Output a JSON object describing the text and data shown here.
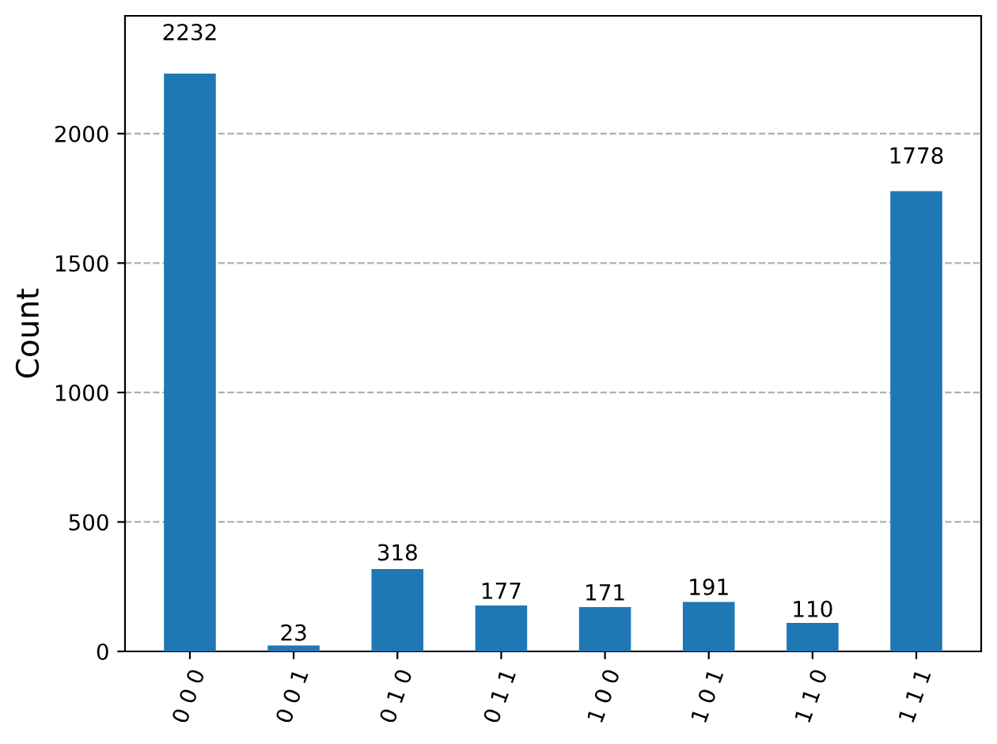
{
  "chart_data": {
    "type": "bar",
    "ylabel": "Count",
    "categories": [
      "0 0 0",
      "0 0 1",
      "0 1 0",
      "0 1 1",
      "1 0 0",
      "1 0 1",
      "1 1 0",
      "1 1 1"
    ],
    "values": [
      2232,
      23,
      318,
      177,
      171,
      191,
      110,
      1778
    ],
    "color": "#1f77b4",
    "ylim": [
      0,
      2455
    ],
    "yticks": [
      0,
      500,
      1000,
      1500,
      2000
    ],
    "grid": "y",
    "data_labels": true
  }
}
